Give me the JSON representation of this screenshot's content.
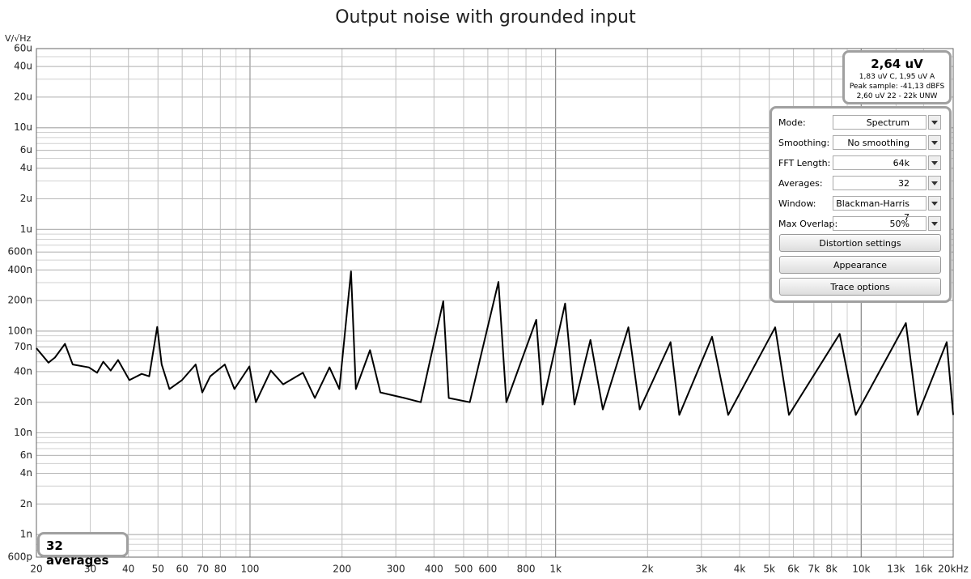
{
  "chart_data": {
    "type": "line",
    "title": "Output noise with grounded input",
    "y_label": "V/√Hz",
    "xscale": "log",
    "yscale": "log",
    "grid": true,
    "xlim": [
      20,
      20000
    ],
    "ylim": [
      6e-10,
      6e-05
    ],
    "xticks": [
      20,
      30,
      40,
      50,
      60,
      70,
      80,
      100,
      200,
      300,
      400,
      500,
      600,
      800,
      {
        "value": 1000,
        "label": "1k"
      },
      {
        "value": 2000,
        "label": "2k"
      },
      {
        "value": 3000,
        "label": "3k"
      },
      {
        "value": 4000,
        "label": "4k"
      },
      {
        "value": 5000,
        "label": "5k"
      },
      {
        "value": 6000,
        "label": "6k"
      },
      {
        "value": 7000,
        "label": "7k"
      },
      {
        "value": 8000,
        "label": "8k"
      },
      {
        "value": 10000,
        "label": "10k"
      },
      {
        "value": 13000,
        "label": "13k"
      },
      {
        "value": 16000,
        "label": "16k"
      },
      {
        "value": 20000,
        "label": "20kHz"
      }
    ],
    "yticks": [
      {
        "value": 6e-05,
        "label": "60u"
      },
      {
        "value": 4e-05,
        "label": "40u"
      },
      {
        "value": 2e-05,
        "label": "20u"
      },
      {
        "value": 1e-05,
        "label": "10u"
      },
      {
        "value": 6e-06,
        "label": "6u"
      },
      {
        "value": 4e-06,
        "label": "4u"
      },
      {
        "value": 2e-06,
        "label": "2u"
      },
      {
        "value": 1e-06,
        "label": "1u"
      },
      {
        "value": 6e-07,
        "label": "600n"
      },
      {
        "value": 4e-07,
        "label": "400n"
      },
      {
        "value": 2e-07,
        "label": "200n"
      },
      {
        "value": 1e-07,
        "label": "100n"
      },
      {
        "value": 7e-08,
        "label": "70n"
      },
      {
        "value": 4e-08,
        "label": "40n"
      },
      {
        "value": 2e-08,
        "label": "20n"
      },
      {
        "value": 1e-08,
        "label": "10n"
      },
      {
        "value": 6e-09,
        "label": "6n"
      },
      {
        "value": 4e-09,
        "label": "4n"
      },
      {
        "value": 2e-09,
        "label": "2n"
      },
      {
        "value": 1e-09,
        "label": "1n"
      },
      {
        "value": 6e-10,
        "label": "600p"
      }
    ],
    "x": [
      20,
      21.9,
      23,
      24.8,
      26.3,
      29.7,
      31.6,
      33.1,
      35,
      37,
      40.3,
      44.2,
      46.8,
      49.7,
      51.4,
      54.5,
      59.9,
      66.4,
      69.8,
      74.1,
      82.7,
      88.9,
      99.5,
      104.5,
      117,
      128.3,
      149,
      163,
      182,
      196,
      214,
      222,
      247,
      267,
      320,
      362,
      429,
      447,
      524,
      650,
      690,
      864,
      907,
      1074,
      1153,
      1300,
      1427,
      1731,
      1885,
      2377,
      2540,
      3250,
      3670,
      5230,
      5800,
      8500,
      9600,
      14000,
      15300,
      19050,
      20000
    ],
    "series": [
      {
        "color": "#000000",
        "values": [
          6.8e-08,
          4.9e-08,
          5.5e-08,
          7.5e-08,
          4.7e-08,
          4.4e-08,
          3.9e-08,
          5e-08,
          4.1e-08,
          5.2e-08,
          3.3e-08,
          3.8e-08,
          3.6e-08,
          1.1e-07,
          4.7e-08,
          2.7e-08,
          3.3e-08,
          4.7e-08,
          2.5e-08,
          3.6e-08,
          4.7e-08,
          2.7e-08,
          4.5e-08,
          2e-08,
          4.1e-08,
          3e-08,
          3.9e-08,
          2.2e-08,
          4.4e-08,
          2.7e-08,
          3.87e-07,
          2.7e-08,
          6.5e-08,
          2.5e-08,
          2.2e-08,
          2e-08,
          1.97e-07,
          2.2e-08,
          2e-08,
          3.05e-07,
          2e-08,
          1.29e-07,
          1.9e-08,
          1.87e-07,
          1.9e-08,
          8.2e-08,
          1.7e-08,
          1.09e-07,
          1.7e-08,
          7.8e-08,
          1.5e-08,
          8.8e-08,
          1.5e-08,
          1.09e-07,
          1.5e-08,
          9.4e-08,
          1.5e-08,
          1.2e-07,
          1.5e-08,
          7.8e-08,
          1.5e-08
        ]
      }
    ]
  },
  "stats": {
    "main": "2,64 uV",
    "lines": [
      "1,83 uV C, 1,95 uV A",
      "Peak sample: -41,13 dBFS",
      "2,60 uV 22 - 22k UNW"
    ]
  },
  "settings": [
    {
      "label": "Mode:",
      "value": "Spectrum"
    },
    {
      "label": "Smoothing:",
      "value": "No  smoothing"
    },
    {
      "label": "FFT Length:",
      "value": "64k"
    },
    {
      "label": "Averages:",
      "value": "32"
    },
    {
      "label": "Window:",
      "value": "Blackman-Harris 7"
    },
    {
      "label": "Max Overlap:",
      "value": "50%"
    }
  ],
  "buttons": [
    "Distortion settings",
    "Appearance",
    "Trace options"
  ],
  "averages_label": "32 averages"
}
